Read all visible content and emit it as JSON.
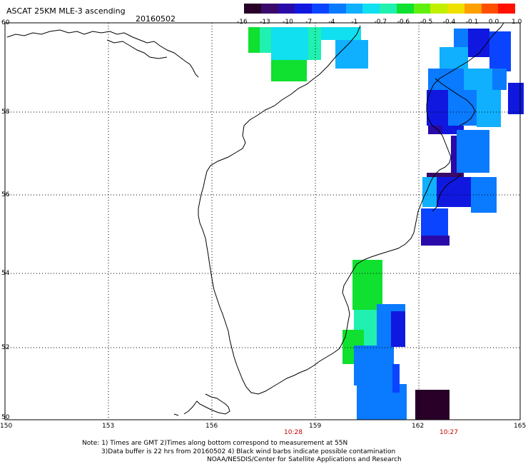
{
  "header": {
    "title": "ASCAT 25KM MLE-3 ascending",
    "date": "20160502"
  },
  "colorbar": {
    "labels": [
      "-16",
      "-13",
      "-10",
      "-7",
      "-4",
      "-1",
      "-0.7",
      "-0.6",
      "-0.5",
      "-0.4",
      "-0.1",
      "0.0",
      "1.0"
    ],
    "colors": [
      "#280028",
      "#3a0a6a",
      "#2a0aa8",
      "#1018e0",
      "#0a44ff",
      "#0a7aff",
      "#10b0ff",
      "#10e0f0",
      "#20f0b0",
      "#10e030",
      "#60f010",
      "#c0f000",
      "#f0e000",
      "#ffa000",
      "#ff5000",
      "#ff1000"
    ]
  },
  "map": {
    "lat_labels": [
      "60",
      "58",
      "56",
      "54",
      "52",
      "50"
    ],
    "lon_labels": [
      "150",
      "153",
      "156",
      "159",
      "162",
      "165"
    ],
    "time_labels": [
      "10:28",
      "10:27"
    ]
  },
  "footer": {
    "line1": "Note: 1) Times are GMT 2)Times along bottom correspond to measurement at 55N",
    "line2": "3)Data buffer is 22 hrs from 20160502 4) Black wind barbs indicate possible contamination",
    "line3": "NOAA/NESDIS/Center for Satellite Applications and Research"
  }
}
